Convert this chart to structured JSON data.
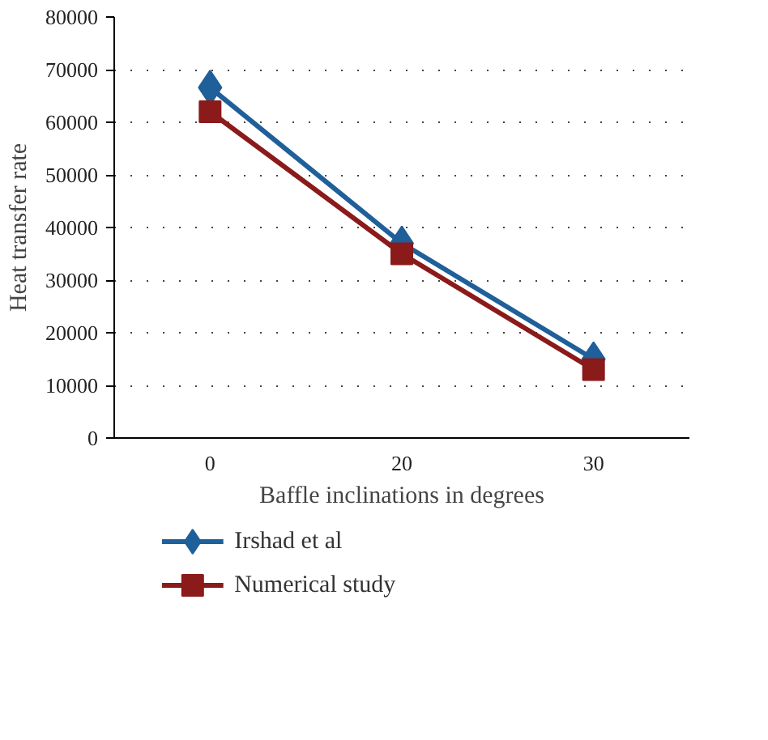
{
  "chart_data": {
    "type": "line",
    "xlabel": "Baffle inclinations in degrees",
    "ylabel": "Heat transfer rate",
    "categories": [
      "0",
      "20",
      "30"
    ],
    "series": [
      {
        "name": "Irshad et al",
        "color": "#1f5f9a",
        "values": [
          66600,
          37000,
          15000
        ],
        "marker": "diamond"
      },
      {
        "name": "Numerical study",
        "color": "#8b1a1a",
        "values": [
          62000,
          35000,
          13000
        ],
        "marker": "square"
      }
    ],
    "ylim": [
      0,
      80000
    ],
    "yticks": [
      0,
      10000,
      20000,
      30000,
      40000,
      50000,
      60000,
      70000,
      80000
    ],
    "grid": "y",
    "legend": "bottom",
    "line_style": "solid"
  }
}
